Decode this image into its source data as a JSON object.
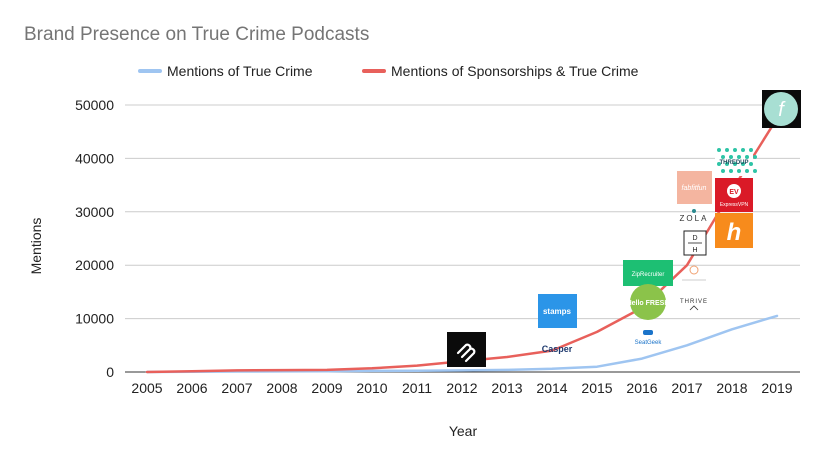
{
  "chart_data": {
    "type": "line",
    "title": "Brand Presence on True Crime Podcasts",
    "xlabel": "Year",
    "ylabel": "Mentions",
    "x": [
      2005,
      2006,
      2007,
      2008,
      2009,
      2010,
      2011,
      2012,
      2013,
      2014,
      2015,
      2016,
      2017,
      2018,
      2019
    ],
    "x_tick_labels": [
      "2005",
      "2006",
      "2007",
      "2008",
      "2009",
      "2010",
      "2011",
      "2012",
      "2013",
      "2014",
      "2015",
      "2016",
      "2017",
      "2018",
      "2019"
    ],
    "ylim": [
      0,
      50000
    ],
    "y_ticks": [
      0,
      10000,
      20000,
      30000,
      40000,
      50000
    ],
    "y_tick_labels": [
      "0",
      "10000",
      "20000",
      "30000",
      "40000",
      "50000"
    ],
    "grid": true,
    "legend_position": "top",
    "series": [
      {
        "name": "Mentions of True Crime",
        "color": "#9fc5f1",
        "values": [
          0,
          50,
          100,
          120,
          150,
          200,
          250,
          300,
          400,
          600,
          1000,
          2500,
          5000,
          8000,
          10500
        ]
      },
      {
        "name": "Mentions of Sponsorships & True Crime",
        "color": "#e8605b",
        "values": [
          0,
          150,
          300,
          350,
          400,
          700,
          1200,
          2000,
          2800,
          4000,
          7500,
          12000,
          20000,
          34000,
          47500
        ]
      }
    ]
  },
  "logos": [
    {
      "name": "squarespace-logo",
      "text": ""
    },
    {
      "name": "stamps-logo",
      "text": "stamps"
    },
    {
      "name": "casper-logo",
      "text": "Casper"
    },
    {
      "name": "zipRecruiter-logo",
      "text": "ZipRecruiter"
    },
    {
      "name": "hellofresh-logo",
      "text": "Hello FRESH"
    },
    {
      "name": "seatgeek-logo",
      "text": "SeatGeek"
    },
    {
      "name": "fabfitfun-logo",
      "text": "fabfitfun"
    },
    {
      "name": "zola-logo",
      "text": "ZOLA"
    },
    {
      "name": "dh-logo",
      "text": "D H"
    },
    {
      "name": "thrive-logo",
      "text": "THRIVE"
    },
    {
      "name": "expressvpn-logo",
      "text": "ExpressVPN"
    },
    {
      "name": "honey-logo",
      "text": "h"
    },
    {
      "name": "thredup-logo",
      "text": "THREDUP"
    },
    {
      "name": "function-logo",
      "text": "f"
    }
  ]
}
